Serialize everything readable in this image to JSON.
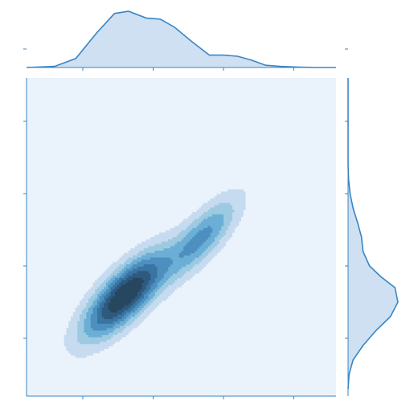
{
  "chart_data": {
    "type": "kde-joint",
    "title": "",
    "xlabel": "",
    "ylabel": "",
    "grid": false,
    "legend": "none",
    "xlim": [
      -0.8,
      3.6
    ],
    "ylim": [
      -0.8,
      3.6
    ],
    "xticks": [
      0,
      1,
      2,
      3
    ],
    "yticks": [
      0,
      1,
      2,
      3,
      4
    ],
    "tick_labels_visible": false,
    "colors": {
      "joint_background": "#eaf2fb",
      "marginal_fill": "#c6dbef",
      "marginal_line": "#3a86c4",
      "axis_line": "#3a86c4",
      "contour_levels": [
        "#c6dbef",
        "#9ecae1",
        "#6baed6",
        "#4d90bf",
        "#3a74a3",
        "#2d5a7e",
        "#27465f"
      ]
    },
    "joint_density": {
      "components": [
        {
          "weight": 0.72,
          "mean": [
            0.6,
            0.6
          ],
          "cov": [
            [
              0.16,
              0.12
            ],
            [
              0.12,
              0.16
            ]
          ]
        },
        {
          "weight": 0.28,
          "mean": [
            1.7,
            1.4
          ],
          "cov": [
            [
              0.12,
              0.1
            ],
            [
              0.1,
              0.14
            ]
          ]
        }
      ],
      "levels": 7
    },
    "x_marginal": {
      "x": [
        -0.8,
        -0.4,
        -0.1,
        0.2,
        0.45,
        0.65,
        0.9,
        1.1,
        1.3,
        1.55,
        1.8,
        2.0,
        2.2,
        2.4,
        2.6,
        2.8,
        3.0,
        3.3,
        3.6
      ],
      "density": [
        0.0,
        0.02,
        0.16,
        0.62,
        0.96,
        1.0,
        0.88,
        0.86,
        0.72,
        0.46,
        0.22,
        0.22,
        0.2,
        0.13,
        0.04,
        0.02,
        0.01,
        0.0,
        0.0
      ]
    },
    "y_marginal": {
      "y": [
        -0.7,
        -0.5,
        -0.3,
        -0.1,
        0.1,
        0.3,
        0.5,
        0.7,
        0.85,
        1.0,
        1.2,
        1.4,
        1.6,
        1.8,
        2.0,
        2.2,
        2.4,
        2.6,
        3.0,
        3.6
      ],
      "density": [
        0.0,
        0.02,
        0.1,
        0.3,
        0.55,
        0.85,
        1.0,
        0.94,
        0.66,
        0.43,
        0.3,
        0.27,
        0.19,
        0.1,
        0.04,
        0.01,
        0.0,
        0.0,
        0.0,
        0.0
      ]
    }
  }
}
